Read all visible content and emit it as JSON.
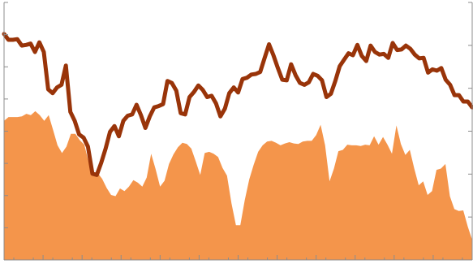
{
  "chart_data": {
    "type": "area",
    "title": "",
    "xlabel": "",
    "ylabel": "",
    "ylim": [
      0,
      8
    ],
    "y2lim": [
      0,
      8
    ],
    "grid": false,
    "legend": "none",
    "x_major_ticks": 12,
    "y_ticks": 8,
    "series": [
      {
        "chart": "area",
        "axis": "left",
        "color": "#F4954B",
        "values": [
          4.32,
          4.44,
          4.44,
          4.44,
          4.46,
          4.54,
          4.5,
          4.62,
          4.5,
          4.32,
          4.5,
          4.04,
          3.56,
          3.32,
          3.52,
          3.92,
          3.92,
          3.72,
          3.58,
          3.02,
          2.72,
          2.7,
          2.52,
          2.24,
          2.02,
          1.98,
          2.22,
          2.14,
          2.28,
          2.48,
          2.4,
          2.28,
          2.56,
          3.3,
          2.82,
          2.28,
          2.46,
          2.98,
          3.28,
          3.5,
          3.64,
          3.6,
          3.46,
          3.06,
          2.64,
          3.32,
          3.36,
          3.3,
          3.2,
          2.86,
          2.62,
          1.76,
          1.08,
          1.08,
          1.86,
          2.5,
          2.96,
          3.36,
          3.56,
          3.68,
          3.7,
          3.64,
          3.56,
          3.62,
          3.66,
          3.62,
          3.6,
          3.68,
          3.7,
          3.7,
          3.88,
          4.2,
          3.56,
          2.44,
          2.84,
          3.38,
          3.42,
          3.58,
          3.56,
          3.56,
          3.54,
          3.58,
          3.56,
          3.84,
          3.58,
          3.82,
          3.58,
          3.3,
          4.18,
          3.6,
          3.26,
          3.42,
          2.84,
          2.32,
          2.44,
          2.02,
          2.14,
          2.8,
          2.84,
          2.98,
          1.98,
          1.58,
          1.52,
          1.54,
          1.04,
          0.62
        ]
      },
      {
        "chart": "line",
        "axis": "right",
        "color": "#993409",
        "values": [
          7.02,
          6.84,
          6.84,
          6.86,
          6.66,
          6.68,
          6.72,
          6.46,
          6.76,
          6.46,
          5.3,
          5.18,
          5.36,
          5.44,
          6.04,
          4.6,
          4.32,
          3.9,
          3.8,
          3.52,
          2.68,
          2.64,
          3.02,
          3.46,
          3.98,
          4.16,
          3.84,
          4.32,
          4.48,
          4.52,
          4.82,
          4.5,
          4.1,
          4.46,
          4.74,
          4.78,
          4.84,
          5.56,
          5.5,
          5.26,
          4.56,
          4.52,
          5.06,
          5.22,
          5.42,
          5.28,
          5.06,
          5.1,
          4.86,
          4.46,
          4.7,
          5.18,
          5.36,
          5.2,
          5.62,
          5.66,
          5.76,
          5.78,
          5.84,
          6.28,
          6.7,
          6.36,
          5.96,
          5.6,
          5.58,
          6.08,
          5.74,
          5.5,
          5.44,
          5.52,
          5.78,
          5.72,
          5.58,
          5.06,
          5.16,
          5.56,
          6.02,
          6.22,
          6.42,
          6.36,
          6.68,
          6.34,
          6.18,
          6.66,
          6.46,
          6.38,
          6.4,
          6.28,
          6.74,
          6.52,
          6.54,
          6.66,
          6.56,
          6.38,
          6.26,
          6.28,
          5.82,
          5.92,
          5.88,
          5.96,
          5.6,
          5.44,
          5.12,
          5.12,
          4.92,
          4.92,
          4.74
        ]
      }
    ]
  }
}
